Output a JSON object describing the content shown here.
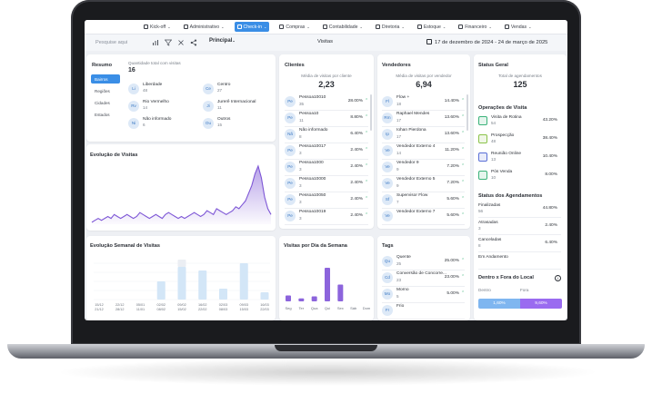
{
  "nav": {
    "items": [
      {
        "label": "Kick-off",
        "icon": "kickoff-icon",
        "active": false,
        "chevron": true
      },
      {
        "label": "Administrativo",
        "icon": "admin-icon",
        "active": false,
        "chevron": true
      },
      {
        "label": "Check-in",
        "icon": "checkin-icon",
        "active": true,
        "chevron": true
      },
      {
        "label": "Compras",
        "icon": "cart-icon",
        "active": false,
        "chevron": true
      },
      {
        "label": "Contabilidade",
        "icon": "calculator-icon",
        "active": false,
        "chevron": true
      },
      {
        "label": "Diretoria",
        "icon": "people-icon",
        "active": false,
        "chevron": true
      },
      {
        "label": "Estoque",
        "icon": "box-icon",
        "active": false,
        "chevron": true
      },
      {
        "label": "Financeiro",
        "icon": "dollar-icon",
        "active": false,
        "chevron": true
      },
      {
        "label": "Vendas",
        "icon": "cart-icon",
        "active": false,
        "chevron": true
      }
    ],
    "chev": "⌄"
  },
  "toolbar": {
    "search_placeholder": "Pesquise aqui",
    "principal": "Principal",
    "title": "Visitas",
    "date_range": "17 de dezembro de 2024 - 24 de março de 2025"
  },
  "resumo": {
    "title": "Resumo",
    "total_label": "Quantidade total com visitas",
    "total_value": "16",
    "tabs": [
      "Bairros",
      "Regiões",
      "Cidades",
      "Estados"
    ],
    "items": [
      {
        "abbr": "Li",
        "name": "Liberdade",
        "value": "48"
      },
      {
        "abbr": "Ce",
        "name": "Centro",
        "value": "27"
      },
      {
        "abbr": "Rv",
        "name": "Rio Vermelho",
        "value": "14"
      },
      {
        "abbr": "Ji",
        "name": "Jurerê Internacional",
        "value": "11"
      },
      {
        "abbr": "Ni",
        "name": "Não informado",
        "value": "6"
      },
      {
        "abbr": "Ou",
        "name": "Outros",
        "value": "15"
      }
    ]
  },
  "clientes": {
    "title": "Clientes",
    "subtitle": "Média de visitas por cliente",
    "value": "2,23",
    "items": [
      {
        "abbr": "Pe",
        "name": "Pessoa10010",
        "value": "35",
        "pct": "28.00%"
      },
      {
        "abbr": "Pe",
        "name": "Pessoa10",
        "value": "11",
        "pct": "8.80%"
      },
      {
        "abbr": "Nã",
        "name": "Não informado",
        "value": "8",
        "pct": "6.40%"
      },
      {
        "abbr": "Pe",
        "name": "Pessoa10017",
        "value": "3",
        "pct": "2.40%"
      },
      {
        "abbr": "Pe",
        "name": "Pessoa1000",
        "value": "3",
        "pct": "2.40%"
      },
      {
        "abbr": "Pe",
        "name": "Pessoa10000",
        "value": "3",
        "pct": "2.40%"
      },
      {
        "abbr": "Pe",
        "name": "Pessoa10050",
        "value": "3",
        "pct": "2.40%"
      },
      {
        "abbr": "Pe",
        "name": "Pessoa10019",
        "value": "3",
        "pct": "2.40%"
      }
    ]
  },
  "vendedores": {
    "title": "Vendedores",
    "subtitle": "Média de visitas por vendedor",
    "value": "6,94",
    "items": [
      {
        "abbr": "Fl",
        "name": "Flow +",
        "value": "18",
        "pct": "14.40%"
      },
      {
        "abbr": "Rm",
        "name": "Raphael Mendes",
        "value": "17",
        "pct": "13.60%"
      },
      {
        "abbr": "Ip",
        "name": "Iohan Pierdona",
        "value": "17",
        "pct": "13.60%"
      },
      {
        "abbr": "Ve",
        "name": "Vendedor Externo 4",
        "value": "14",
        "pct": "11.20%"
      },
      {
        "abbr": "Ve",
        "name": "Vendedor 9",
        "value": "9",
        "pct": "7.20%"
      },
      {
        "abbr": "Ve",
        "name": "Vendedor Externo 5",
        "value": "9",
        "pct": "7.20%"
      },
      {
        "abbr": "Sf",
        "name": "Supervisor Flow",
        "value": "7",
        "pct": "5.60%"
      },
      {
        "abbr": "Ve",
        "name": "Vendedor Externo 7",
        "value": "",
        "pct": "5.60%"
      }
    ]
  },
  "status_geral": {
    "title": "Status Geral",
    "total_label": "Total de agendamentos",
    "total_value": "125",
    "operacoes_title": "Operações de Visita",
    "operacoes": [
      {
        "name": "Visita de Rotina",
        "value": "54",
        "pct": "43.20%",
        "color": "#3bb37a",
        "icon": "calendar-icon"
      },
      {
        "name": "Prospecção",
        "value": "48",
        "pct": "38.40%",
        "color": "#8bc34a",
        "icon": "target-icon"
      },
      {
        "name": "Reunião Online",
        "value": "13",
        "pct": "10.40%",
        "color": "#5a6fd6",
        "icon": "laptop-icon"
      },
      {
        "name": "Pós Venda",
        "value": "10",
        "pct": "8.00%",
        "color": "#3bb37a",
        "icon": "checklist-icon"
      }
    ],
    "agend_title": "Status dos Agendamentos",
    "agendamentos": [
      {
        "name": "Finalizadas",
        "value": "56",
        "pct": "44.80%"
      },
      {
        "name": "Atrasadas",
        "value": "3",
        "pct": "2.40%"
      },
      {
        "name": "Canceladas",
        "value": "8",
        "pct": "6.40%"
      },
      {
        "name": "Em Andamento",
        "value": "",
        "pct": ""
      }
    ],
    "local_title": "Dentro x Fora do Local",
    "local_labels": [
      "Dentro",
      "Fora"
    ],
    "local_values": [
      "1,60%",
      "9,60%"
    ],
    "local_fractions": [
      0.5,
      0.5
    ],
    "local_colors": [
      "#7fb6f0",
      "#9a6bf0"
    ]
  },
  "evolucao": {
    "title": "Evolução de Visitas",
    "color": "#7e57d6"
  },
  "semanal": {
    "title": "Evolução Semanal de Visitas",
    "labels": [
      [
        "15/12",
        "21/12"
      ],
      [
        "22/12",
        "28/12"
      ],
      [
        "05/01",
        "11/01"
      ],
      [
        "02/02",
        "08/02"
      ],
      [
        "09/02",
        "15/02"
      ],
      [
        "16/02",
        "22/02"
      ],
      [
        "02/03",
        "08/03"
      ],
      [
        "09/03",
        "15/03"
      ],
      [
        "16/03",
        "22/03"
      ]
    ]
  },
  "dia_semana": {
    "title": "Visitas por Dia da Semana",
    "color": "#8c64dc"
  },
  "tags": {
    "title": "Tags",
    "items": [
      {
        "abbr": "Qu",
        "name": "Quente",
        "value": "25",
        "pct": "25.00%"
      },
      {
        "abbr": "Cd",
        "name": "Conversão de Concorre...",
        "value": "23",
        "pct": "23.00%"
      },
      {
        "abbr": "Mo",
        "name": "Morno",
        "value": "5",
        "pct": "5.00%"
      },
      {
        "abbr": "Fr",
        "name": "Frio",
        "value": "",
        "pct": ""
      }
    ]
  },
  "chart_data": [
    {
      "type": "area",
      "title": "Evolução de Visitas",
      "values": [
        1,
        2,
        3,
        2,
        3,
        4,
        3,
        5,
        4,
        3,
        4,
        5,
        4,
        3,
        4,
        6,
        5,
        4,
        3,
        4,
        5,
        4,
        3,
        5,
        6,
        5,
        4,
        3,
        4,
        3,
        4,
        5,
        6,
        5,
        4,
        5,
        7,
        6,
        5,
        8,
        7,
        6,
        5,
        6,
        7,
        9,
        8,
        10,
        12,
        16,
        20,
        26,
        30,
        24,
        14,
        8,
        5
      ]
    },
    {
      "type": "bar",
      "title": "Evolução Semanal de Visitas",
      "categories": [
        "15/12",
        "22/12",
        "05/01",
        "02/02",
        "09/02",
        "16/02",
        "02/03",
        "09/03",
        "16/03"
      ],
      "series": [
        {
          "values": [
            0,
            0,
            0,
            0,
            2,
            0,
            0,
            0,
            0
          ]
        },
        {
          "values": [
            0,
            0,
            0,
            5,
            9,
            8,
            3,
            10,
            2
          ]
        }
      ]
    },
    {
      "type": "bar",
      "title": "Visitas por Dia da Semana",
      "categories": [
        "Seg",
        "Ter",
        "Qua",
        "Qui",
        "Sex",
        "Sáb",
        "Dom"
      ],
      "values": [
        6,
        3,
        5,
        34,
        17,
        0,
        0
      ]
    }
  ]
}
